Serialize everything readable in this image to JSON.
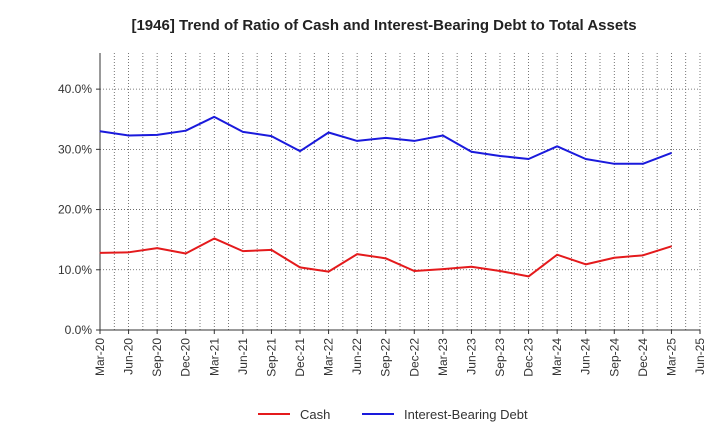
{
  "chart_data": {
    "type": "line",
    "title": "[1946]  Trend of Ratio of Cash and Interest-Bearing Debt to Total Assets",
    "xlabel": "",
    "ylabel": "",
    "ylim": [
      0,
      46
    ],
    "yticks": [
      0,
      10,
      20,
      30,
      40
    ],
    "ytick_labels": [
      "0.0%",
      "10.0%",
      "20.0%",
      "30.0%",
      "40.0%"
    ],
    "categories": [
      "Mar-20",
      "Jun-20",
      "Sep-20",
      "Dec-20",
      "Mar-21",
      "Jun-21",
      "Sep-21",
      "Dec-21",
      "Mar-22",
      "Jun-22",
      "Sep-22",
      "Dec-22",
      "Mar-23",
      "Jun-23",
      "Sep-23",
      "Dec-23",
      "Mar-24",
      "Jun-24",
      "Sep-24",
      "Dec-24",
      "Mar-25",
      "Jun-25"
    ],
    "grid": true,
    "legend_position": "bottom",
    "series": [
      {
        "name": "Cash",
        "color": "#e41a1c",
        "values": [
          12.8,
          12.9,
          13.6,
          12.7,
          15.2,
          13.1,
          13.3,
          10.4,
          9.7,
          12.6,
          11.9,
          9.8,
          10.1,
          10.5,
          9.8,
          8.9,
          12.5,
          10.9,
          12.0,
          12.4,
          13.9,
          null
        ]
      },
      {
        "name": "Interest-Bearing Debt",
        "color": "#1a1adc",
        "values": [
          33.0,
          32.3,
          32.4,
          33.1,
          35.4,
          32.9,
          32.2,
          29.7,
          32.8,
          31.4,
          31.9,
          31.4,
          32.3,
          29.6,
          28.9,
          28.4,
          30.5,
          28.4,
          27.6,
          27.6,
          29.4,
          null
        ]
      }
    ]
  }
}
